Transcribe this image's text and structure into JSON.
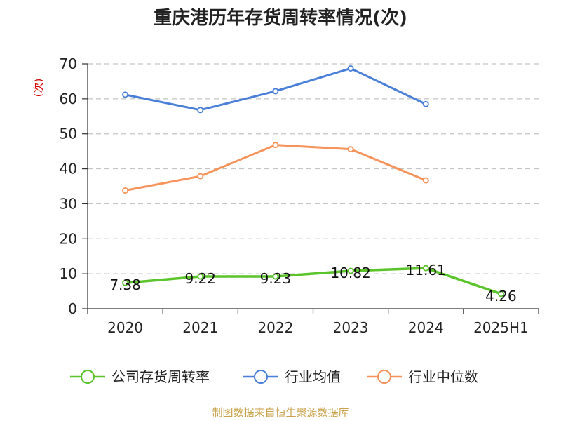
{
  "chart_data": {
    "type": "line",
    "title": "重庆港历年存货周转率情况(次)",
    "ylabel": "(次)",
    "ylim": [
      0,
      70
    ],
    "yticks": [
      0,
      10,
      20,
      30,
      40,
      50,
      60,
      70
    ],
    "grid": true,
    "legend_position": "bottom",
    "categories": [
      "2020",
      "2021",
      "2022",
      "2023",
      "2024",
      "2025H1"
    ],
    "series": [
      {
        "name": "公司存货周转率",
        "color": "#5bc42b",
        "values": [
          7.38,
          9.22,
          9.23,
          10.82,
          11.61,
          4.26
        ],
        "labels": [
          "7.38",
          "9.22",
          "9.23",
          "10.82",
          "11.61",
          "4.26"
        ]
      },
      {
        "name": "行业均值",
        "color": "#4a7fd8",
        "values": [
          61.2,
          56.8,
          62.2,
          68.7,
          58.5,
          null
        ]
      },
      {
        "name": "行业中位数",
        "color": "#f5935b",
        "values": [
          33.8,
          37.9,
          46.8,
          45.6,
          36.7,
          null
        ]
      }
    ]
  },
  "source": "制图数据来自恒生聚源数据库"
}
